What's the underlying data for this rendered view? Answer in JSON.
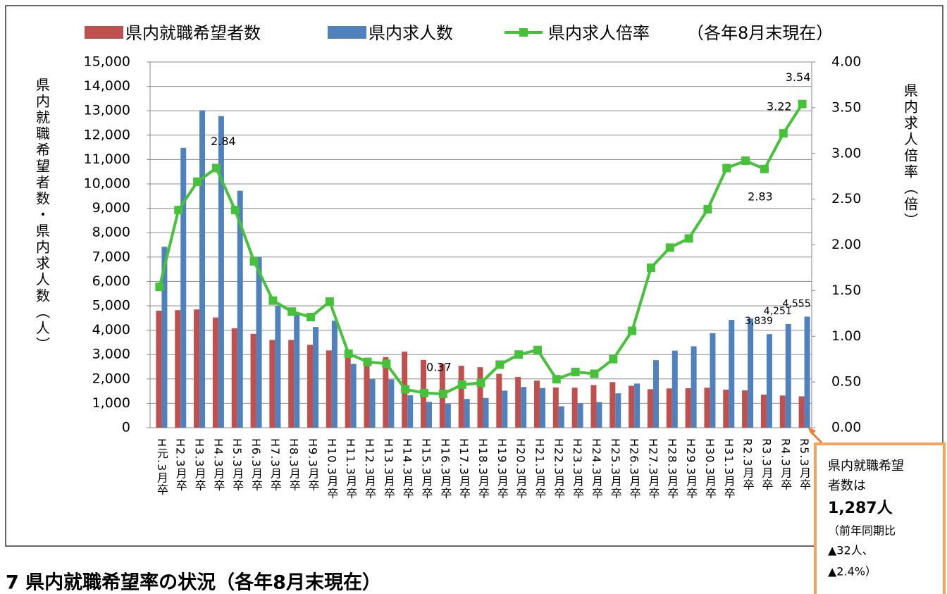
{
  "chart_data": {
    "type": "bar-line",
    "legend_note": "（各年8月末現在）",
    "y_label": "県内就職希望者数・県内求人数（人）",
    "y2_label": "県内求人倍率（倍）",
    "legend": "top",
    "grid": true,
    "categories": [
      "H元.3月卒",
      "H2.3月卒",
      "H3.3月卒",
      "H4.3月卒",
      "H5.3月卒",
      "H6.3月卒",
      "H7.3月卒",
      "H8.3月卒",
      "H9.3月卒",
      "H10.3月卒",
      "H11.3月卒",
      "H12.3月卒",
      "H13.3月卒",
      "H14.3月卒",
      "H15.3月卒",
      "H16.3月卒",
      "H17.3月卒",
      "H18.3月卒",
      "H19.3月卒",
      "H20.3月卒",
      "H21.3月卒",
      "H22.3月卒",
      "H23.3月卒",
      "H24.3月卒",
      "H25.3月卒",
      "H26.3月卒",
      "H27.3月卒",
      "H28.3月卒",
      "H29.3月卒",
      "H30.3月卒",
      "H31.3月卒",
      "R2.3月卒",
      "R3.3月卒",
      "R4.3月卒",
      "R5.3月卒"
    ],
    "series": [
      {
        "name": "県内就職希望者数",
        "type": "bar",
        "color": "#c0504d",
        "values": [
          4800,
          4820,
          4850,
          4520,
          4080,
          3850,
          3600,
          3600,
          3400,
          3170,
          2900,
          2700,
          2900,
          3120,
          2780,
          2620,
          2540,
          2480,
          2210,
          2080,
          1930,
          1650,
          1640,
          1750,
          1870,
          1720,
          1580,
          1610,
          1620,
          1640,
          1560,
          1530,
          1356,
          1319,
          1287
        ]
      },
      {
        "name": "県内求人数",
        "type": "bar",
        "color": "#4f81bd",
        "values": [
          7420,
          11480,
          13020,
          12780,
          9720,
          7000,
          5000,
          4700,
          4130,
          4390,
          2620,
          2000,
          1980,
          1330,
          1060,
          980,
          1180,
          1220,
          1520,
          1670,
          1630,
          880,
          1000,
          1050,
          1410,
          1810,
          2770,
          3160,
          3340,
          3880,
          4420,
          4480,
          3839,
          4251,
          4555
        ],
        "value_labels": [
          null,
          null,
          null,
          null,
          null,
          null,
          null,
          null,
          null,
          null,
          null,
          null,
          null,
          null,
          null,
          null,
          null,
          null,
          null,
          null,
          null,
          null,
          null,
          null,
          null,
          null,
          null,
          null,
          null,
          null,
          null,
          null,
          "3,839",
          "4,251",
          "4,555"
        ]
      },
      {
        "name": "県内求人倍率",
        "type": "line",
        "axis": "y2",
        "color": "#46c23a",
        "values": [
          1.54,
          2.38,
          2.69,
          2.84,
          2.38,
          1.82,
          1.39,
          1.27,
          1.21,
          1.38,
          0.81,
          0.72,
          0.7,
          0.42,
          0.38,
          0.37,
          0.47,
          0.49,
          0.69,
          0.8,
          0.85,
          0.53,
          0.61,
          0.59,
          0.75,
          1.06,
          1.75,
          1.97,
          2.07,
          2.39,
          2.84,
          2.92,
          2.83,
          3.22,
          3.54
        ],
        "value_labels": [
          null,
          null,
          null,
          "2.84",
          null,
          null,
          null,
          null,
          null,
          null,
          null,
          null,
          null,
          null,
          null,
          "0.37",
          null,
          null,
          null,
          null,
          null,
          null,
          null,
          null,
          null,
          null,
          null,
          null,
          null,
          null,
          null,
          null,
          "2.83",
          "3.22",
          "3.54"
        ]
      }
    ],
    "ylim": [
      0,
      15000
    ],
    "yticks": [
      0,
      {
        "value": 1000,
        "label": "1,000"
      },
      {
        "value": 2000,
        "label": "2,000"
      },
      {
        "value": 3000,
        "label": "3,000"
      },
      {
        "value": 4000,
        "label": "4,000"
      },
      {
        "value": 5000,
        "label": "5,000"
      },
      {
        "value": 6000,
        "label": "6,000"
      },
      {
        "value": 7000,
        "label": "7,000"
      },
      {
        "value": 8000,
        "label": "8,000"
      },
      {
        "value": 9000,
        "label": "9,000"
      },
      {
        "value": 10000,
        "label": "10,000"
      },
      {
        "value": 11000,
        "label": "11,000"
      },
      {
        "value": 12000,
        "label": "12,000"
      },
      {
        "value": 13000,
        "label": "13,000"
      },
      {
        "value": 14000,
        "label": "14,000"
      },
      {
        "value": 15000,
        "label": "15,000"
      }
    ],
    "y2lim": [
      0,
      4
    ],
    "y2ticks": [
      {
        "value": 0,
        "label": "0.00"
      },
      {
        "value": 0.5,
        "label": "0.50"
      },
      {
        "value": 1,
        "label": "1.00"
      },
      {
        "value": 1.5,
        "label": "1.50"
      },
      {
        "value": 2,
        "label": "2.00"
      },
      {
        "value": 2.5,
        "label": "2.50"
      },
      {
        "value": 3,
        "label": "3.00"
      },
      {
        "value": 3.5,
        "label": "3.50"
      },
      {
        "value": 4,
        "label": "4.00"
      }
    ],
    "annotation": {
      "lines": [
        "県内就職希望",
        "者数は",
        "1,287人",
        "（前年同期比",
        "▲32人、",
        "▲2.4%）"
      ]
    }
  },
  "section_heading": "7 県内就職希望率の状況（各年8月末現在）"
}
